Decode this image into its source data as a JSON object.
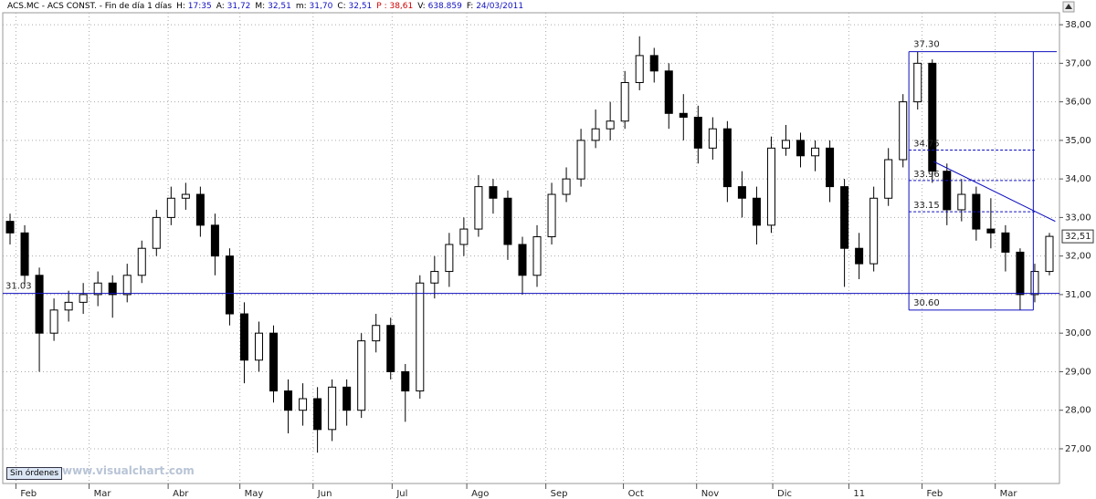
{
  "chart_data": {
    "type": "candlestick",
    "header": [
      {
        "text": "ACS.MC - ACS CONST. - Fin de día 1 días"
      },
      {
        "label": "H:",
        "value": "17:35"
      },
      {
        "label": "A:",
        "value": "31,72"
      },
      {
        "label": "M:",
        "value": "32,51"
      },
      {
        "label": "m:",
        "value": "31,70"
      },
      {
        "label": "C:",
        "value": "32,51"
      },
      {
        "label": "P :",
        "value": "38,61",
        "color": "#d00000"
      },
      {
        "label": "V:",
        "value": "638.859"
      },
      {
        "label": "F:",
        "value": "24/03/2011"
      }
    ],
    "button": "Sin órdenes",
    "watermark": "www.visualchart.com",
    "open": [
      32.9,
      32.6,
      31.5,
      30.0,
      30.6,
      30.8,
      31.0,
      31.3,
      31.0,
      31.5,
      32.2,
      33.0,
      33.5,
      33.6,
      32.8,
      32.0,
      30.5,
      29.3,
      30.0,
      28.5,
      28.0,
      28.3,
      27.5,
      28.6,
      28.0,
      29.8,
      30.2,
      29.0,
      28.5,
      31.3,
      31.6,
      32.3,
      32.7,
      33.8,
      33.5,
      32.3,
      31.5,
      32.5,
      33.6,
      34.0,
      35.0,
      35.3,
      35.5,
      36.5,
      37.2,
      36.8,
      35.7,
      35.6,
      34.8,
      35.3,
      33.8,
      33.5,
      32.8,
      34.8,
      35.0,
      34.6,
      34.8,
      33.8,
      32.2,
      31.8,
      33.5,
      34.5,
      36.0,
      37.0,
      34.2,
      33.2,
      33.6,
      32.7,
      32.6,
      32.1,
      31.0,
      31.6
    ],
    "high": [
      33.1,
      32.8,
      31.7,
      30.9,
      31.1,
      31.3,
      31.6,
      31.5,
      31.8,
      32.4,
      33.2,
      33.8,
      33.9,
      33.8,
      33.1,
      32.2,
      30.8,
      30.3,
      30.2,
      28.8,
      28.7,
      28.6,
      28.8,
      28.8,
      30.0,
      30.5,
      30.4,
      29.2,
      31.5,
      32.0,
      32.6,
      33.0,
      34.1,
      34.0,
      33.7,
      32.5,
      32.8,
      33.9,
      34.3,
      35.3,
      35.8,
      36.0,
      36.8,
      37.7,
      37.4,
      37.0,
      36.2,
      35.9,
      35.6,
      35.5,
      34.2,
      33.8,
      35.1,
      35.4,
      35.2,
      35.0,
      35.0,
      34.0,
      32.6,
      33.8,
      34.8,
      36.2,
      37.3,
      37.1,
      34.4,
      34.0,
      33.8,
      33.5,
      32.8,
      32.2,
      31.8,
      32.6
    ],
    "low": [
      32.3,
      31.2,
      29.0,
      29.8,
      30.3,
      30.5,
      30.7,
      30.4,
      30.8,
      31.3,
      32.0,
      32.8,
      33.2,
      32.5,
      31.5,
      30.2,
      28.7,
      29.0,
      28.2,
      27.4,
      27.6,
      26.9,
      27.2,
      27.6,
      27.8,
      29.5,
      28.8,
      27.7,
      28.3,
      30.9,
      31.2,
      32.0,
      32.5,
      33.1,
      31.9,
      31.0,
      31.2,
      32.3,
      33.4,
      33.8,
      34.8,
      35.0,
      35.3,
      36.3,
      36.5,
      35.3,
      35.0,
      34.4,
      34.5,
      33.4,
      33.0,
      32.3,
      32.6,
      34.6,
      34.3,
      34.2,
      33.4,
      31.2,
      31.4,
      31.6,
      33.3,
      34.3,
      35.8,
      33.9,
      32.8,
      32.9,
      32.4,
      32.2,
      31.6,
      30.6,
      30.8,
      31.5
    ],
    "close": [
      32.6,
      31.5,
      30.0,
      30.6,
      30.8,
      31.0,
      31.3,
      31.0,
      31.5,
      32.2,
      33.0,
      33.5,
      33.6,
      32.8,
      32.0,
      30.5,
      29.3,
      30.0,
      28.5,
      28.0,
      28.3,
      27.5,
      28.6,
      28.0,
      29.8,
      30.2,
      29.0,
      28.5,
      31.3,
      31.6,
      32.3,
      32.7,
      33.8,
      33.5,
      32.3,
      31.5,
      32.5,
      33.6,
      34.0,
      35.0,
      35.3,
      35.5,
      36.5,
      37.2,
      36.8,
      35.7,
      35.6,
      34.8,
      35.3,
      33.8,
      33.5,
      32.8,
      34.8,
      35.0,
      34.6,
      34.8,
      33.8,
      32.2,
      31.8,
      33.5,
      34.5,
      36.0,
      37.0,
      34.2,
      33.2,
      33.6,
      32.7,
      32.6,
      32.1,
      31.0,
      31.6,
      32.51
    ],
    "xlim": [
      -0.5,
      71.5
    ],
    "xticks": [
      {
        "value": 0.4,
        "label": "Feb"
      },
      {
        "value": 5.4,
        "label": "Mar"
      },
      {
        "value": 10.8,
        "label": "Abr"
      },
      {
        "value": 15.7,
        "label": "May"
      },
      {
        "value": 20.7,
        "label": "Jun"
      },
      {
        "value": 26.1,
        "label": "Jul"
      },
      {
        "value": 31.2,
        "label": "Ago"
      },
      {
        "value": 36.6,
        "label": "Sep"
      },
      {
        "value": 41.9,
        "label": "Oct"
      },
      {
        "value": 46.9,
        "label": "Nov"
      },
      {
        "value": 52.1,
        "label": "Dic"
      },
      {
        "value": 57.3,
        "label": "11"
      },
      {
        "value": 62.3,
        "label": "Feb"
      },
      {
        "value": 67.3,
        "label": "Mar"
      }
    ],
    "ylim": [
      26.1,
      38.31
    ],
    "yticks": [
      {
        "value": 27,
        "label": "27,00"
      },
      {
        "value": 28,
        "label": "28,00"
      },
      {
        "value": 29,
        "label": "29,00"
      },
      {
        "value": 30,
        "label": "30,00"
      },
      {
        "value": 31,
        "label": "31,00"
      },
      {
        "value": 32,
        "label": "32,00"
      },
      {
        "value": 33,
        "label": "33,00"
      },
      {
        "value": 34,
        "label": "34,00"
      },
      {
        "value": 35,
        "label": "35,00"
      },
      {
        "value": 36,
        "label": "36,00"
      },
      {
        "value": 37,
        "label": "37,00"
      },
      {
        "value": 38,
        "label": "38,00"
      }
    ],
    "grid": true,
    "last_price": {
      "value": 32.51,
      "label": "32,51"
    },
    "support_line": 31.03,
    "box": {
      "x": [
        61.4,
        69.9
      ],
      "top": {
        "value": 37.3,
        "label": "37.30"
      },
      "bottom": {
        "value": 30.6,
        "label": "30.60"
      },
      "levels": [
        34.75,
        33.96,
        33.15
      ]
    },
    "trend_line": {
      "x": [
        63.1,
        71.4
      ],
      "y": [
        34.45,
        32.9
      ]
    },
    "color": "#1010c0"
  }
}
